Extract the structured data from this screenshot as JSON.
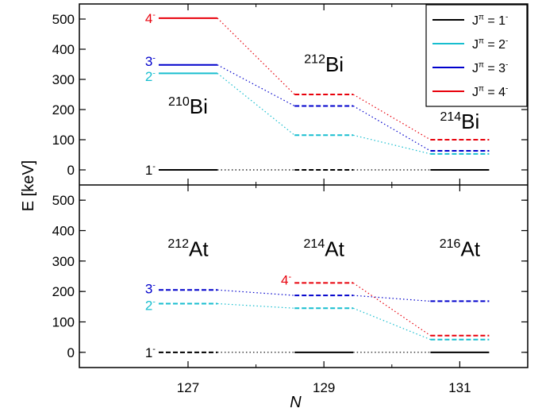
{
  "chart_data": {
    "type": "level-scheme",
    "ylabel": "E [keV]",
    "xlabel": "N",
    "x_ticks": [
      127,
      129,
      131
    ],
    "xlim": [
      125.4,
      132.0
    ],
    "ylim": [
      -50,
      550
    ],
    "y_ticks": [
      0,
      100,
      200,
      300,
      400,
      500
    ],
    "legend": {
      "placement": "top-right",
      "entries": [
        {
          "label": "J",
          "sup": "π",
          "tail": " = 1",
          "tailsup": "-",
          "color": "#000000"
        },
        {
          "label": "J",
          "sup": "π",
          "tail": " = 2",
          "tailsup": "-",
          "color": "#17becf"
        },
        {
          "label": "J",
          "sup": "π",
          "tail": " = 3",
          "tailsup": "-",
          "color": "#0000cc"
        },
        {
          "label": "J",
          "sup": "π",
          "tail": " = 4",
          "tailsup": "-",
          "color": "#e8000b"
        }
      ]
    },
    "panels": [
      {
        "name": "Bi",
        "nuclei": [
          {
            "mass": "210",
            "element": "Bi",
            "x": 127,
            "y": 210
          },
          {
            "mass": "212",
            "element": "Bi",
            "x": 129,
            "y": 350
          },
          {
            "mass": "214",
            "element": "Bi",
            "x": 131,
            "y": 160
          }
        ],
        "series": [
          {
            "j": 1,
            "color": "#000000",
            "points": [
              {
                "x": 127,
                "e": 0,
                "style": "solid"
              },
              {
                "x": 129,
                "e": 0,
                "style": "dashed"
              },
              {
                "x": 131,
                "e": 0,
                "style": "solid"
              }
            ]
          },
          {
            "j": 2,
            "color": "#17becf",
            "points": [
              {
                "x": 127,
                "e": 320,
                "style": "solid"
              },
              {
                "x": 129,
                "e": 115,
                "style": "dashed"
              },
              {
                "x": 131,
                "e": 53,
                "style": "dashed"
              }
            ]
          },
          {
            "j": 3,
            "color": "#0000cc",
            "points": [
              {
                "x": 127,
                "e": 348,
                "style": "solid"
              },
              {
                "x": 129,
                "e": 212,
                "style": "dashed"
              },
              {
                "x": 131,
                "e": 63,
                "style": "dashed"
              }
            ]
          },
          {
            "j": 4,
            "color": "#e8000b",
            "points": [
              {
                "x": 127,
                "e": 503,
                "style": "solid"
              },
              {
                "x": 129,
                "e": 250,
                "style": "dashed"
              },
              {
                "x": 131,
                "e": 100,
                "style": "dashed"
              }
            ]
          }
        ],
        "level_labels": [
          {
            "text": "1",
            "sup": "-",
            "color": "#000000",
            "x": 127,
            "e": 0
          },
          {
            "text": "2",
            "sup": "-",
            "color": "#17becf",
            "x": 127,
            "e": 310
          },
          {
            "text": "3",
            "sup": "-",
            "color": "#0000cc",
            "x": 127,
            "e": 360
          },
          {
            "text": "4",
            "sup": "-",
            "color": "#e8000b",
            "x": 127,
            "e": 503
          }
        ]
      },
      {
        "name": "At",
        "nuclei": [
          {
            "mass": "212",
            "element": "At",
            "x": 127,
            "y": 340
          },
          {
            "mass": "214",
            "element": "At",
            "x": 129,
            "y": 340
          },
          {
            "mass": "216",
            "element": "At",
            "x": 131,
            "y": 340
          }
        ],
        "series": [
          {
            "j": 1,
            "color": "#000000",
            "points": [
              {
                "x": 127,
                "e": 0,
                "style": "dashed"
              },
              {
                "x": 129,
                "e": 0,
                "style": "solid"
              },
              {
                "x": 131,
                "e": 0,
                "style": "solid"
              }
            ]
          },
          {
            "j": 2,
            "color": "#17becf",
            "points": [
              {
                "x": 127,
                "e": 160,
                "style": "dashed"
              },
              {
                "x": 129,
                "e": 145,
                "style": "dashed"
              },
              {
                "x": 131,
                "e": 42,
                "style": "dashed"
              }
            ]
          },
          {
            "j": 3,
            "color": "#0000cc",
            "points": [
              {
                "x": 127,
                "e": 205,
                "style": "dashed"
              },
              {
                "x": 129,
                "e": 187,
                "style": "dashed"
              },
              {
                "x": 131,
                "e": 168,
                "style": "dashed"
              }
            ]
          },
          {
            "j": 4,
            "color": "#e8000b",
            "points": [
              {
                "x": 129,
                "e": 228,
                "style": "dashed"
              },
              {
                "x": 131,
                "e": 55,
                "style": "dashed"
              }
            ]
          }
        ],
        "level_labels": [
          {
            "text": "1",
            "sup": "-",
            "color": "#000000",
            "x": 127,
            "e": 0
          },
          {
            "text": "2",
            "sup": "-",
            "color": "#17becf",
            "x": 127,
            "e": 155
          },
          {
            "text": "3",
            "sup": "-",
            "color": "#0000cc",
            "x": 127,
            "e": 210
          },
          {
            "text": "4",
            "sup": "-",
            "color": "#e8000b",
            "x": 129,
            "e": 238
          }
        ]
      }
    ]
  }
}
